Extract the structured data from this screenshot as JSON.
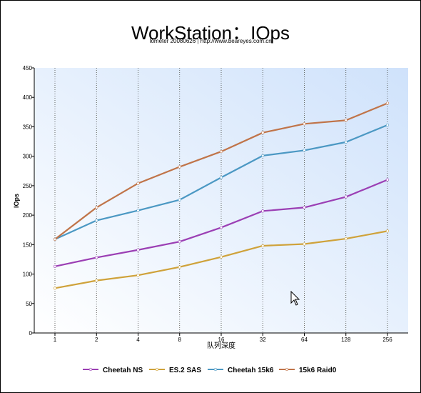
{
  "title": "WorkStation：IOps",
  "subtitle": "Iometer 20080626 | http://www.beareyes.com.cn",
  "chart_data": {
    "type": "line",
    "title": "WorkStation：IOps",
    "subtitle": "Iometer 20080626 | http://www.beareyes.com.cn",
    "xlabel": "队列深度",
    "ylabel": "IOps",
    "categories": [
      "1",
      "2",
      "4",
      "8",
      "16",
      "32",
      "64",
      "128",
      "256"
    ],
    "ylim": [
      0,
      450
    ],
    "yticks": [
      0,
      50,
      100,
      150,
      200,
      250,
      300,
      350,
      400,
      450
    ],
    "grid": "vertical-dotted",
    "legend_position": "bottom",
    "series": [
      {
        "name": "Cheetah NS",
        "color": "#9b3fb4",
        "values": [
          113,
          128,
          141,
          155,
          179,
          207,
          213,
          231,
          260
        ]
      },
      {
        "name": "ES.2 SAS",
        "color": "#cfa23a",
        "values": [
          76,
          89,
          98,
          112,
          129,
          148,
          151,
          160,
          173
        ]
      },
      {
        "name": "Cheetah 15k6",
        "color": "#4b98c3",
        "values": [
          159,
          191,
          208,
          226,
          264,
          301,
          310,
          324,
          353
        ]
      },
      {
        "name": "15k6 Raid0",
        "color": "#c07449",
        "values": [
          159,
          213,
          254,
          282,
          308,
          340,
          355,
          361,
          390
        ]
      }
    ]
  }
}
